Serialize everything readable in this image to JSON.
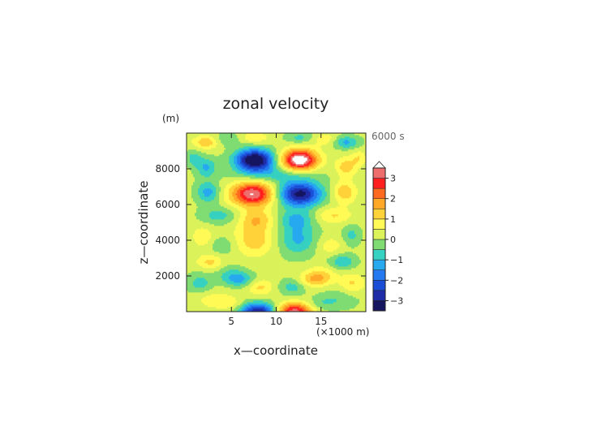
{
  "chart_data": {
    "type": "heatmap",
    "title": "zonal velocity",
    "xlabel": "x—coordinate",
    "ylabel": "z—coordinate",
    "x_unit": "(×1000 m)",
    "y_unit": "(m)",
    "time_label": "6000 s",
    "xlim": [
      0,
      20
    ],
    "ylim": [
      0,
      10000
    ],
    "x_ticks": [
      {
        "value": 5,
        "label": "5"
      },
      {
        "value": 10,
        "label": "10"
      },
      {
        "value": 15,
        "label": "15"
      }
    ],
    "y_ticks": [
      {
        "value": 2000,
        "label": "2000"
      },
      {
        "value": 4000,
        "label": "4000"
      },
      {
        "value": 6000,
        "label": "6000"
      },
      {
        "value": 8000,
        "label": "8000"
      }
    ],
    "colorbar": {
      "levels": [
        -3.5,
        -3,
        -2.5,
        -2,
        -1.5,
        -1,
        -0.5,
        0,
        0.5,
        1,
        1.5,
        2,
        2.5,
        3,
        3.5
      ],
      "colors": [
        "#151560",
        "#1e2ca8",
        "#1b4ed6",
        "#2478f0",
        "#27a9ef",
        "#36d1c0",
        "#7fdc72",
        "#dbf25a",
        "#fffa55",
        "#ffd23a",
        "#ffa828",
        "#ff6a20",
        "#ff1f1f",
        "#ee6e6e",
        "#ffb5b5"
      ],
      "overflow_color": "#ffffff",
      "tick_labels": [
        {
          "value": 3,
          "label": "3"
        },
        {
          "value": 2,
          "label": "2"
        },
        {
          "value": 1,
          "label": "1"
        },
        {
          "value": 0,
          "label": "0"
        },
        {
          "value": -1,
          "label": "−1"
        },
        {
          "value": -2,
          "label": "−2"
        },
        {
          "value": -3,
          "label": "−3"
        }
      ]
    },
    "field": {
      "background": 0.15,
      "features": [
        {
          "x": 7.6,
          "z": 8500,
          "sx": 1.5,
          "sz": 420,
          "amp": -4.0
        },
        {
          "x": 12.6,
          "z": 8500,
          "sx": 1.4,
          "sz": 420,
          "amp": 4.0
        },
        {
          "x": 2.2,
          "z": 8100,
          "sx": 0.8,
          "sz": 380,
          "amp": -1.2
        },
        {
          "x": 17.8,
          "z": 8100,
          "sx": 0.8,
          "sz": 380,
          "amp": 1.2
        },
        {
          "x": 0.8,
          "z": 8600,
          "sx": 0.6,
          "sz": 300,
          "amp": -0.9
        },
        {
          "x": 19.2,
          "z": 8600,
          "sx": 0.6,
          "sz": 300,
          "amp": 0.8
        },
        {
          "x": 10.0,
          "z": 7700,
          "sx": 3.2,
          "sz": 330,
          "amp": -0.9
        },
        {
          "x": 2.2,
          "z": 9500,
          "sx": 1.0,
          "sz": 250,
          "amp": 1.3
        },
        {
          "x": 4.5,
          "z": 9650,
          "sx": 1.0,
          "sz": 250,
          "amp": -0.7
        },
        {
          "x": 7.6,
          "z": 9750,
          "sx": 1.1,
          "sz": 220,
          "amp": 0.8
        },
        {
          "x": 12.6,
          "z": 9750,
          "sx": 1.1,
          "sz": 220,
          "amp": -0.8
        },
        {
          "x": 15.5,
          "z": 9650,
          "sx": 1.0,
          "sz": 250,
          "amp": 0.7
        },
        {
          "x": 17.8,
          "z": 9500,
          "sx": 1.0,
          "sz": 250,
          "amp": -1.3
        },
        {
          "x": 7.4,
          "z": 6600,
          "sx": 1.7,
          "sz": 480,
          "amp": 3.4
        },
        {
          "x": 12.6,
          "z": 6600,
          "sx": 1.7,
          "sz": 480,
          "amp": -3.4
        },
        {
          "x": 2.4,
          "z": 6700,
          "sx": 0.9,
          "sz": 420,
          "amp": -1.4
        },
        {
          "x": 17.6,
          "z": 6700,
          "sx": 0.9,
          "sz": 420,
          "amp": 1.3
        },
        {
          "x": 3.6,
          "z": 5400,
          "sx": 1.4,
          "sz": 320,
          "amp": -0.9
        },
        {
          "x": 16.4,
          "z": 5400,
          "sx": 1.4,
          "sz": 320,
          "amp": 0.9
        },
        {
          "x": 7.8,
          "z": 5200,
          "sx": 1.3,
          "sz": 380,
          "amp": 1.1
        },
        {
          "x": 12.2,
          "z": 5200,
          "sx": 1.3,
          "sz": 380,
          "amp": -1.1
        },
        {
          "x": 1.8,
          "z": 4200,
          "sx": 0.8,
          "sz": 400,
          "amp": 0.8
        },
        {
          "x": 18.4,
          "z": 4300,
          "sx": 0.7,
          "sz": 400,
          "amp": -0.8
        },
        {
          "x": 4.0,
          "z": 3700,
          "sx": 1.0,
          "sz": 350,
          "amp": -0.6
        },
        {
          "x": 16.0,
          "z": 3700,
          "sx": 1.0,
          "sz": 350,
          "amp": 0.7
        },
        {
          "x": 7.6,
          "z": 4100,
          "sx": 1.5,
          "sz": 650,
          "amp": 1.25
        },
        {
          "x": 12.4,
          "z": 4100,
          "sx": 1.5,
          "sz": 650,
          "amp": -1.25
        },
        {
          "x": 2.6,
          "z": 2800,
          "sx": 1.0,
          "sz": 300,
          "amp": 1.0
        },
        {
          "x": 17.4,
          "z": 2800,
          "sx": 1.0,
          "sz": 300,
          "amp": -1.1
        },
        {
          "x": 5.0,
          "z": 2100,
          "sx": 1.2,
          "sz": 350,
          "amp": -0.7
        },
        {
          "x": 15.0,
          "z": 2100,
          "sx": 1.2,
          "sz": 350,
          "amp": 0.8
        },
        {
          "x": 6.0,
          "z": 1800,
          "sx": 1.2,
          "sz": 280,
          "amp": -1.1
        },
        {
          "x": 14.2,
          "z": 1800,
          "sx": 1.2,
          "sz": 280,
          "amp": 1.1
        },
        {
          "x": 8.2,
          "z": 1400,
          "sx": 1.0,
          "sz": 320,
          "amp": 1.0
        },
        {
          "x": 11.8,
          "z": 1400,
          "sx": 1.0,
          "sz": 320,
          "amp": -0.9
        },
        {
          "x": 1.5,
          "z": 1600,
          "sx": 1.0,
          "sz": 400,
          "amp": -0.9
        },
        {
          "x": 18.5,
          "z": 1600,
          "sx": 1.0,
          "sz": 400,
          "amp": 0.9
        },
        {
          "x": 3.0,
          "z": 700,
          "sx": 1.5,
          "sz": 380,
          "amp": 0.6
        },
        {
          "x": 17.0,
          "z": 700,
          "sx": 1.5,
          "sz": 380,
          "amp": -0.6
        },
        {
          "x": 8.0,
          "z": 0,
          "sx": 1.4,
          "sz": 350,
          "amp": -3.2
        },
        {
          "x": 12.0,
          "z": 0,
          "sx": 1.4,
          "sz": 350,
          "amp": 3.2
        },
        {
          "x": 5.0,
          "z": 450,
          "sx": 1.0,
          "sz": 280,
          "amp": 0.5
        },
        {
          "x": 15.0,
          "z": 450,
          "sx": 1.0,
          "sz": 280,
          "amp": -0.5
        }
      ]
    }
  }
}
